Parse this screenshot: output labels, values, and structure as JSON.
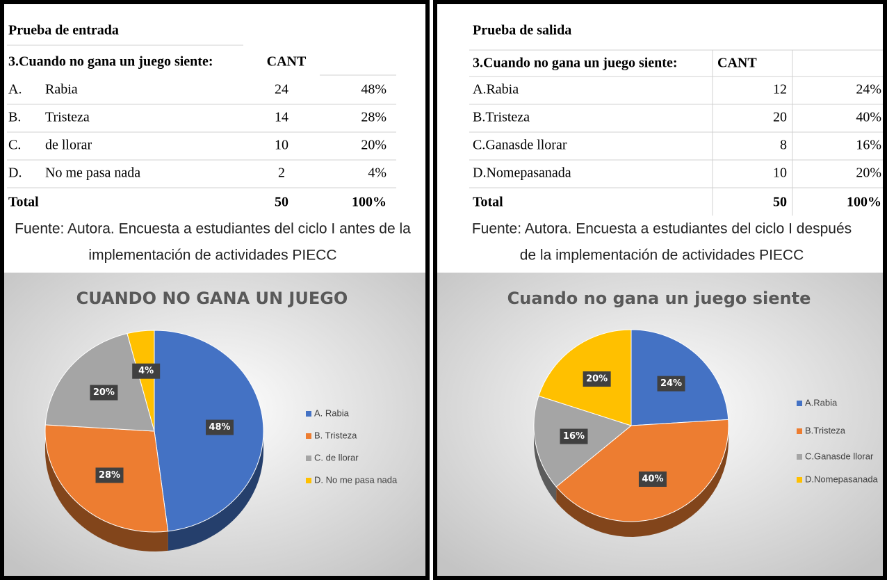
{
  "tables": [
    {
      "title": "Prueba de entrada",
      "header": [
        "3.Cuando no gana un juego siente:",
        "CANT"
      ],
      "rows": [
        [
          "A.",
          "Rabia",
          "24",
          "48%"
        ],
        [
          "B.",
          "Tristeza",
          "14",
          "28%"
        ],
        [
          "C.",
          " de llorar",
          "10",
          "20%"
        ],
        [
          "D.",
          "No me pasa nada",
          "2",
          "4%"
        ]
      ],
      "total": [
        "Total",
        "50",
        "100%"
      ],
      "source": [
        "Fuente:  Autora. Encuesta a estudiantes del ciclo I antes de la",
        "implementación de actividades PIECC"
      ]
    },
    {
      "title": "Prueba de salida",
      "header": [
        "3.Cuando no gana un juego siente:",
        "CANT"
      ],
      "rows": [
        [
          "A.Rabia",
          "12",
          "24%"
        ],
        [
          "B.Tristeza",
          "20",
          "40%"
        ],
        [
          "C.Ganasde llorar",
          "8",
          "16%"
        ],
        [
          "D.Nomepasanada",
          "10",
          "20%"
        ]
      ],
      "total": [
        "Total",
        "50",
        "100%"
      ],
      "source": [
        "Fuente:  Autora. Encuesta a estudiantes del ciclo I después",
        "de la implementación de actividades PIECC"
      ]
    }
  ],
  "chart_data": [
    {
      "type": "pie",
      "title": "CUANDO NO GANA UN JUEGO",
      "categories": [
        "A.   Rabia",
        "B.   Tristeza",
        "C.    de llorar",
        "D.   No me pasa nada"
      ],
      "values": [
        48,
        28,
        20,
        4
      ],
      "value_labels": [
        "48%",
        "28%",
        "20%",
        "4%"
      ],
      "colors": [
        "#4472c4",
        "#ed7d31",
        "#a5a5a5",
        "#ffc000"
      ],
      "legend": "right"
    },
    {
      "type": "pie",
      "title": "Cuando no gana un juego siente",
      "categories": [
        "A.Rabia",
        "B.Tristeza",
        "C.Ganasde llorar",
        "D.Nomepasanada"
      ],
      "values": [
        24,
        40,
        16,
        20
      ],
      "value_labels": [
        "24%",
        "40%",
        "16%",
        "20%"
      ],
      "colors": [
        "#4472c4",
        "#ed7d31",
        "#a5a5a5",
        "#ffc000"
      ],
      "legend": "right"
    }
  ]
}
